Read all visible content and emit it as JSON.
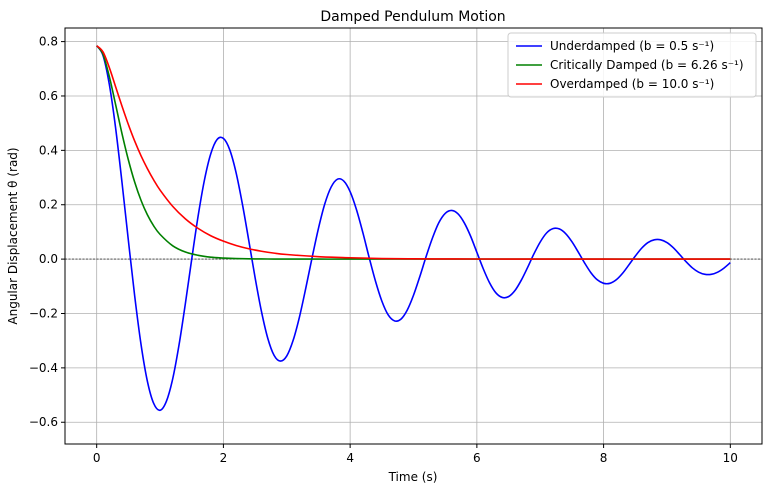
{
  "chart_data": {
    "type": "line",
    "title": "Damped Pendulum Motion",
    "xlabel": "Time (s)",
    "ylabel": "Angular Displacement θ (rad)",
    "xlim": [
      -0.5,
      10.5
    ],
    "ylim": [
      -0.68,
      0.85
    ],
    "xticks": [
      0,
      2,
      4,
      6,
      8,
      10
    ],
    "xtick_labels": [
      "0",
      "2",
      "4",
      "6",
      "8",
      "10"
    ],
    "yticks": [
      -0.6,
      -0.4,
      -0.2,
      0.0,
      0.2,
      0.4,
      0.6,
      0.8
    ],
    "ytick_labels": [
      "−0.6",
      "−0.4",
      "−0.2",
      "0.0",
      "0.2",
      "0.4",
      "0.6",
      "0.8"
    ],
    "grid": true,
    "legend_position": "top-right",
    "reference_line_y": 0,
    "series": [
      {
        "name": "Underdamped (b = 0.5 s⁻¹)",
        "color": "#0000ff",
        "x": [
          0,
          0.1,
          0.2,
          0.3,
          0.4,
          0.5,
          0.6,
          0.7,
          0.8,
          0.9,
          1.0,
          1.1,
          1.2,
          1.3,
          1.4,
          1.5,
          1.6,
          1.7,
          1.8,
          1.9,
          2.0,
          2.1,
          2.2,
          2.3,
          2.4,
          2.5,
          2.6,
          2.7,
          2.8,
          2.9,
          3.0,
          3.1,
          3.2,
          3.3,
          3.4,
          3.5,
          3.6,
          3.7,
          3.8,
          3.9,
          4.0,
          4.1,
          4.2,
          4.3,
          4.4,
          4.5,
          4.6,
          4.7,
          4.8,
          4.9,
          5.0,
          5.1,
          5.2,
          5.3,
          5.4,
          5.5,
          5.6,
          5.7,
          5.8,
          5.9,
          6.0,
          6.1,
          6.2,
          6.3,
          6.4,
          6.5,
          6.6,
          6.7,
          6.8,
          6.9,
          7.0,
          7.1,
          7.2,
          7.3,
          7.4,
          7.5,
          7.6,
          7.7,
          7.8,
          7.9,
          8.0,
          8.1,
          8.2,
          8.3,
          8.4,
          8.5,
          8.6,
          8.7,
          8.8,
          8.9,
          9.0,
          9.1,
          9.2,
          9.3,
          9.4,
          9.5,
          9.6,
          9.7,
          9.8,
          9.9,
          10.0
        ],
        "y": [
          0.785,
          0.749,
          0.642,
          0.48,
          0.281,
          0.069,
          -0.136,
          -0.314,
          -0.449,
          -0.531,
          -0.556,
          -0.523,
          -0.44,
          -0.315,
          -0.163,
          0,
          0.157,
          0.29,
          0.387,
          0.44,
          0.444,
          0.402,
          0.318,
          0.202,
          0.069,
          -0.068,
          -0.192,
          -0.291,
          -0.354,
          -0.375,
          -0.356,
          -0.299,
          -0.213,
          -0.107,
          0.006,
          0.113,
          0.203,
          0.265,
          0.294,
          0.287,
          0.248,
          0.182,
          0.098,
          0.006,
          -0.081,
          -0.154,
          -0.205,
          -0.227,
          -0.221,
          -0.188,
          -0.133,
          -0.064,
          0.01,
          0.078,
          0.134,
          0.168,
          0.179,
          0.167,
          0.134,
          0.085,
          0.025,
          -0.035,
          -0.087,
          -0.124,
          -0.141,
          -0.138,
          -0.116,
          -0.078,
          -0.031,
          0.019,
          0.063,
          0.096,
          0.112,
          0.111,
          0.094,
          0.064,
          0.026,
          -0.014,
          -0.05,
          -0.076,
          -0.089,
          -0.089,
          -0.076,
          -0.052,
          -0.021,
          0.011,
          0.04,
          0.061,
          0.071,
          0.071,
          0.061,
          0.042,
          0.017,
          -0.009,
          -0.032,
          -0.048,
          -0.056,
          -0.056,
          -0.048,
          -0.033,
          -0.013
        ],
        "y_scale_note": ""
      },
      {
        "name": "Critically Damped (b = 6.26 s⁻¹)",
        "color": "#008000",
        "x": [
          0,
          0.1,
          0.2,
          0.3,
          0.4,
          0.5,
          0.6,
          0.7,
          0.8,
          0.9,
          1.0,
          1.2,
          1.4,
          1.6,
          1.8,
          2.0,
          2.2,
          2.4,
          2.6,
          2.8,
          3.0,
          3.5,
          4.0,
          5.0,
          6.0,
          7.0,
          8.0,
          9.0,
          10.0
        ],
        "y": [
          0.785,
          0.753,
          0.671,
          0.567,
          0.461,
          0.365,
          0.283,
          0.216,
          0.163,
          0.122,
          0.091,
          0.049,
          0.026,
          0.014,
          0.007,
          0.004,
          0.002,
          0.001,
          0.0005,
          0.0003,
          0.0001,
          0,
          0,
          0,
          0,
          0,
          0,
          0,
          0
        ]
      },
      {
        "name": "Overdamped (b = 10.0 s⁻¹)",
        "color": "#ff0000",
        "x": [
          0,
          0.1,
          0.2,
          0.3,
          0.4,
          0.5,
          0.6,
          0.7,
          0.8,
          0.9,
          1.0,
          1.2,
          1.4,
          1.6,
          1.8,
          2.0,
          2.2,
          2.4,
          2.6,
          2.8,
          3.0,
          3.5,
          4.0,
          4.5,
          5.0,
          5.5,
          6.0,
          7.0,
          8.0,
          9.0,
          10.0
        ],
        "y": [
          0.785,
          0.762,
          0.704,
          0.633,
          0.562,
          0.495,
          0.434,
          0.38,
          0.333,
          0.291,
          0.254,
          0.194,
          0.148,
          0.113,
          0.086,
          0.066,
          0.05,
          0.038,
          0.029,
          0.022,
          0.017,
          0.009,
          0.005,
          0.002,
          0.001,
          0.0007,
          0.0004,
          0.0001,
          0,
          0,
          0
        ]
      }
    ]
  }
}
